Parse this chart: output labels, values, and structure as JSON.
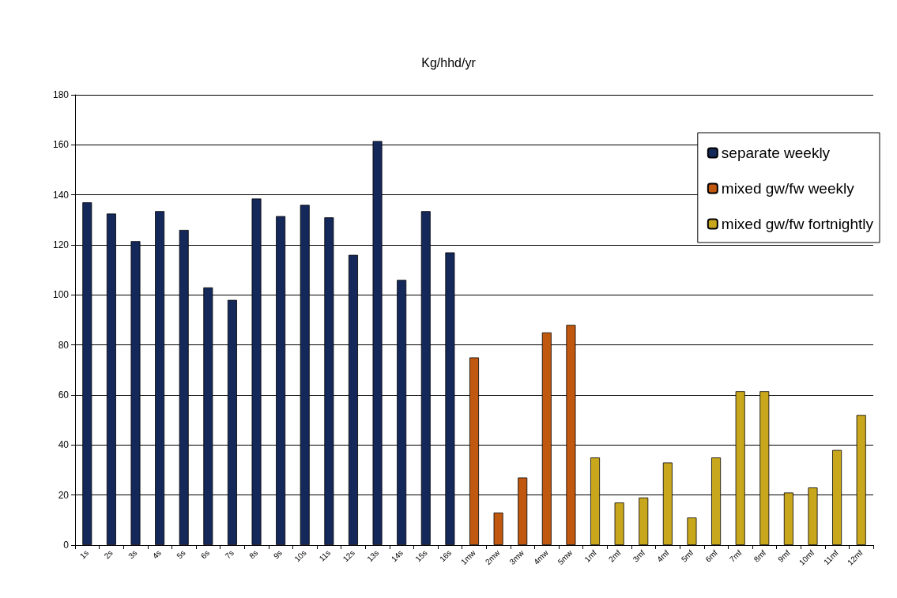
{
  "chart_data": {
    "type": "bar",
    "title": "Kg/hhd/yr",
    "categories": [
      "1s",
      "2s",
      "3s",
      "4s",
      "5s",
      "6s",
      "7s",
      "8s",
      "9s",
      "10s",
      "11s",
      "12s",
      "13s",
      "14s",
      "15s",
      "16s",
      "1mw",
      "2mw",
      "3mw",
      "4mw",
      "5mw",
      "1mf",
      "2mf",
      "3mf",
      "4mf",
      "5mf",
      "6mf",
      "7mf",
      "8mf",
      "9mf",
      "10mf",
      "11mf",
      "12mf"
    ],
    "series": [
      {
        "name": "separate weekly",
        "color": "#14285a",
        "values": [
          137,
          132.5,
          121.5,
          133.5,
          126,
          103,
          98,
          138.5,
          131.5,
          136,
          131,
          116,
          161.5,
          106,
          133.5,
          117,
          null,
          null,
          null,
          null,
          null,
          null,
          null,
          null,
          null,
          null,
          null,
          null,
          null,
          null,
          null,
          null,
          null
        ]
      },
      {
        "name": "mixed gw/fw weekly",
        "color": "#c0580f",
        "values": [
          null,
          null,
          null,
          null,
          null,
          null,
          null,
          null,
          null,
          null,
          null,
          null,
          null,
          null,
          null,
          null,
          75,
          13,
          27,
          85,
          88,
          null,
          null,
          null,
          null,
          null,
          null,
          null,
          null,
          null,
          null,
          null,
          null
        ]
      },
      {
        "name": "mixed gw/fw fortnightly",
        "color": "#c9a71c",
        "values": [
          null,
          null,
          null,
          null,
          null,
          null,
          null,
          null,
          null,
          null,
          null,
          null,
          null,
          null,
          null,
          null,
          null,
          null,
          null,
          null,
          null,
          35,
          17,
          19,
          33,
          11,
          35,
          61.5,
          61.5,
          21,
          23,
          38,
          52
        ]
      }
    ],
    "ylim": [
      0,
      180
    ],
    "yticks": [
      0,
      20,
      40,
      60,
      80,
      100,
      120,
      140,
      160,
      180
    ],
    "grid": "y",
    "legend": "top right"
  }
}
